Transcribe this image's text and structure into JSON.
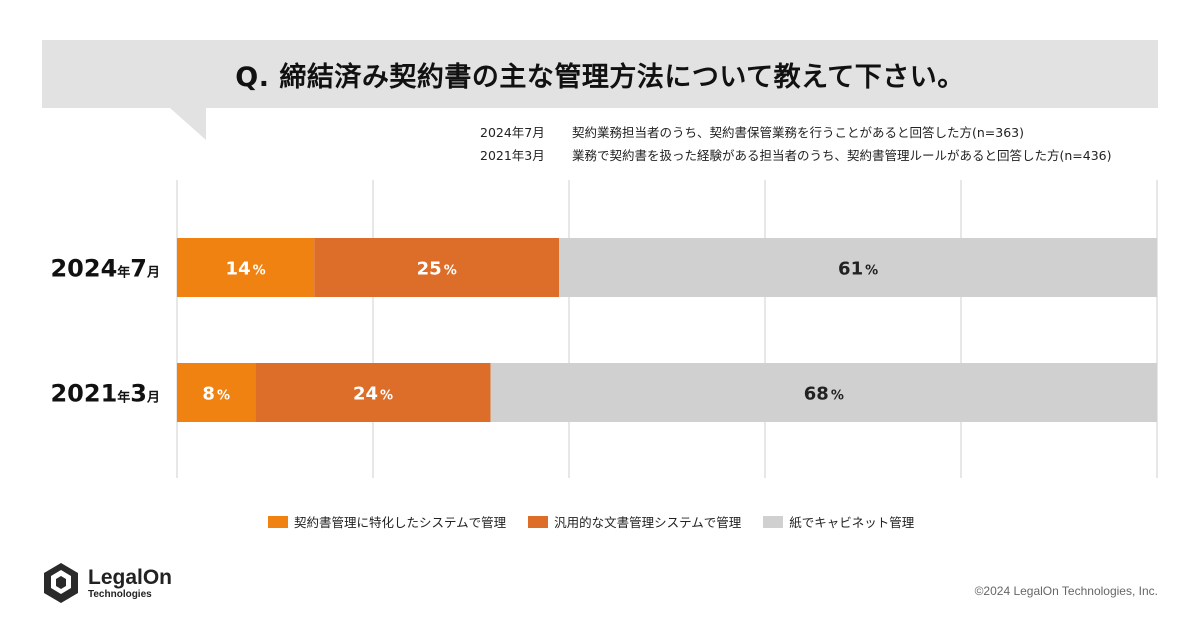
{
  "question": "Q. 締結済み契約書の主な管理方法について教えて下さい。",
  "notes": [
    {
      "date": "2024年7月",
      "text": "契約業務担当者のうち、契約書保管業務を行うことがあると回答した方(n=363)"
    },
    {
      "date": "2021年3月",
      "text": "業務で契約書を扱った経験がある担当者のうち、契約書管理ルールがあると回答した方(n=436)"
    }
  ],
  "chart_data": {
    "type": "bar",
    "orientation": "horizontal",
    "stacked": true,
    "percent": true,
    "categories": [
      {
        "year": "2024",
        "sep1": "年",
        "month": "7",
        "sep2": "月"
      },
      {
        "year": "2021",
        "sep1": "年",
        "month": "3",
        "sep2": "月"
      }
    ],
    "series": [
      {
        "name": "契約書管理に特化したシステムで管理",
        "color": "#f08212",
        "values": [
          14,
          8
        ]
      },
      {
        "name": "汎用的な文書管理システムで管理",
        "color": "#dc6e2a",
        "values": [
          25,
          24
        ]
      },
      {
        "name": "紙でキャビネット管理",
        "color": "#d0d0d0",
        "values": [
          61,
          68
        ]
      }
    ],
    "xlim": [
      0,
      100
    ],
    "grid": true,
    "legend_position": "bottom"
  },
  "footer": {
    "logo_name": "LegalOn",
    "logo_sub": "Technologies",
    "copyright": "©2024 LegalOn Technologies, Inc."
  }
}
